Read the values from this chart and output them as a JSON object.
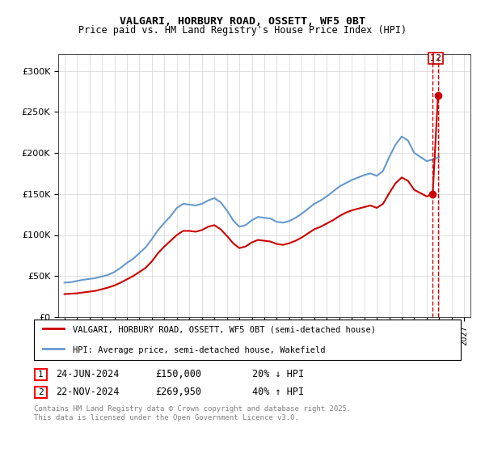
{
  "title_line1": "VALGARI, HORBURY ROAD, OSSETT, WF5 0BT",
  "title_line2": "Price paid vs. HM Land Registry's House Price Index (HPI)",
  "legend_label1": "VALGARI, HORBURY ROAD, OSSETT, WF5 0BT (semi-detached house)",
  "legend_label2": "HPI: Average price, semi-detached house, Wakefield",
  "annotation1_num": "1",
  "annotation1_date": "24-JUN-2024",
  "annotation1_price": "£150,000",
  "annotation1_hpi": "20% ↓ HPI",
  "annotation2_num": "2",
  "annotation2_date": "22-NOV-2024",
  "annotation2_price": "£269,950",
  "annotation2_hpi": "40% ↑ HPI",
  "footer": "Contains HM Land Registry data © Crown copyright and database right 2025.\nThis data is licensed under the Open Government Licence v3.0.",
  "hpi_color": "#6699cc",
  "price_color": "#cc0000",
  "ylim": [
    0,
    320000
  ],
  "yticks": [
    0,
    50000,
    100000,
    150000,
    200000,
    250000,
    300000
  ],
  "xmin": 1994.5,
  "xmax": 2027.5,
  "sale1_x": 2024.48,
  "sale1_y": 150000,
  "sale2_x": 2024.9,
  "sale2_y": 269950,
  "hpi_x": [
    1995,
    1995.5,
    1996,
    1996.5,
    1997,
    1997.5,
    1998,
    1998.5,
    1999,
    1999.5,
    2000,
    2000.5,
    2001,
    2001.5,
    2002,
    2002.5,
    2003,
    2003.5,
    2004,
    2004.5,
    2005,
    2005.5,
    2006,
    2006.5,
    2007,
    2007.5,
    2008,
    2008.5,
    2009,
    2009.5,
    2010,
    2010.5,
    2011,
    2011.5,
    2012,
    2012.5,
    2013,
    2013.5,
    2014,
    2014.5,
    2015,
    2015.5,
    2016,
    2016.5,
    2017,
    2017.5,
    2018,
    2018.5,
    2019,
    2019.5,
    2020,
    2020.5,
    2021,
    2021.5,
    2022,
    2022.5,
    2023,
    2023.5,
    2024,
    2024.5,
    2025
  ],
  "hpi_y": [
    42000,
    42500,
    44000,
    45500,
    46500,
    47500,
    49500,
    51500,
    55000,
    60000,
    66000,
    71000,
    78000,
    85000,
    95000,
    106000,
    115000,
    123000,
    133000,
    138000,
    137000,
    136000,
    138000,
    142000,
    145000,
    140000,
    130000,
    118000,
    110000,
    112000,
    118000,
    122000,
    121000,
    120000,
    116000,
    115000,
    117000,
    121000,
    126000,
    132000,
    138000,
    142000,
    147000,
    153000,
    159000,
    163000,
    167000,
    170000,
    173000,
    175000,
    172000,
    178000,
    195000,
    210000,
    220000,
    215000,
    200000,
    195000,
    190000,
    192000,
    195000
  ],
  "price_x": [
    1995,
    1995.5,
    1996,
    1996.5,
    1997,
    1997.5,
    1998,
    1998.5,
    1999,
    1999.5,
    2000,
    2000.5,
    2001,
    2001.5,
    2002,
    2002.5,
    2003,
    2003.5,
    2004,
    2004.5,
    2005,
    2005.5,
    2006,
    2006.5,
    2007,
    2007.5,
    2008,
    2008.5,
    2009,
    2009.5,
    2010,
    2010.5,
    2011,
    2011.5,
    2012,
    2012.5,
    2013,
    2013.5,
    2014,
    2014.5,
    2015,
    2015.5,
    2016,
    2016.5,
    2017,
    2017.5,
    2018,
    2018.5,
    2019,
    2019.5,
    2020,
    2020.5,
    2021,
    2021.5,
    2022,
    2022.5,
    2023,
    2023.5,
    2024,
    2024.48,
    2024.9
  ],
  "price_y": [
    28000,
    28500,
    29000,
    30000,
    31000,
    32000,
    34000,
    36000,
    38500,
    42000,
    46000,
    50000,
    55000,
    60000,
    68000,
    78000,
    86000,
    93000,
    100000,
    105000,
    105000,
    104000,
    106000,
    110000,
    112000,
    107000,
    99000,
    90000,
    84000,
    86000,
    91000,
    94000,
    93000,
    92000,
    89000,
    88000,
    90000,
    93000,
    97000,
    102000,
    107000,
    110000,
    114000,
    118000,
    123000,
    127000,
    130000,
    132000,
    134000,
    136000,
    133000,
    138000,
    151000,
    163000,
    170000,
    166000,
    155000,
    151000,
    147000,
    150000,
    269950
  ]
}
